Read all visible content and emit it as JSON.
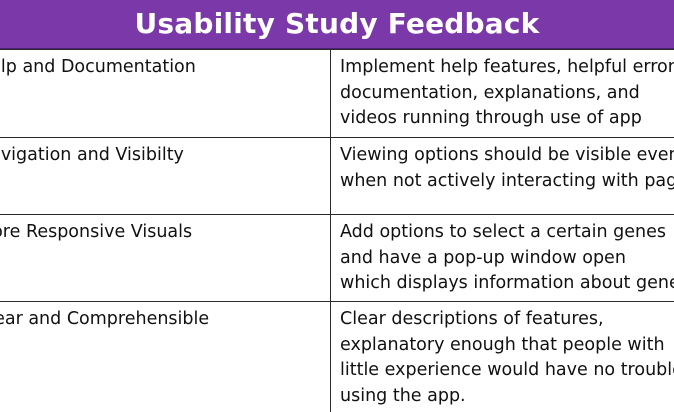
{
  "title": "Usability Study Feedback",
  "colors": {
    "header_background": "#7a38a8",
    "header_text": "#ffffff",
    "grid_lines": "#2a2a2a"
  },
  "rows": [
    {
      "topic": "Help and Documentation",
      "recommendation": [
        "Implement help features, helpful error",
        "documentation, explanations, and",
        "videos running through use of app"
      ]
    },
    {
      "topic": "Navigation and Visibilty",
      "recommendation": [
        "Viewing options should be visible even",
        "when not actively interacting with page"
      ]
    },
    {
      "topic": "More Responsive Visuals",
      "recommendation": [
        "Add options to select a certain genes",
        "and have a pop-up window open",
        "which displays information about genes"
      ]
    },
    {
      "topic": "Clear and Comprehensible",
      "recommendation": [
        "Clear descriptions of features,",
        "explanatory enough that people with",
        "little experience would have no trouble",
        "using the app."
      ]
    }
  ]
}
